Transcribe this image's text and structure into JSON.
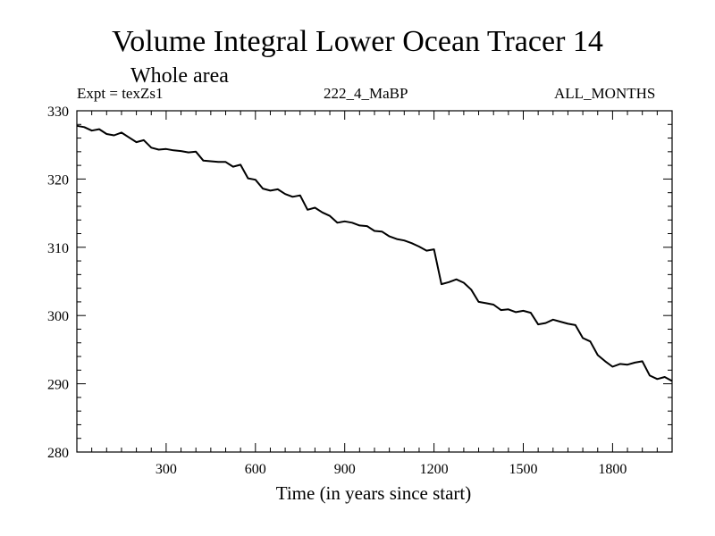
{
  "chart_data": {
    "type": "line",
    "title": "Volume Integral Lower Ocean Tracer 14",
    "subtitle": "Whole area",
    "annotations": {
      "left": "Expt = texZs1",
      "center": "222_4_MaBP",
      "right": "ALL_MONTHS"
    },
    "xlabel": "Time (in years since start)",
    "ylabel": "",
    "xlim": [
      0,
      2000
    ],
    "ylim": [
      280,
      330
    ],
    "x_ticks": [
      300,
      600,
      900,
      1200,
      1500,
      1800
    ],
    "x_tick_labels": [
      "300",
      "600",
      "900",
      "1200",
      "1500",
      "1800"
    ],
    "y_ticks": [
      280,
      290,
      300,
      310,
      320,
      330
    ],
    "y_tick_labels": [
      "280",
      "290",
      "300",
      "310",
      "320",
      "330"
    ],
    "grid": false,
    "series": [
      {
        "name": "tracer14",
        "x": [
          0,
          25,
          50,
          75,
          100,
          125,
          150,
          175,
          200,
          225,
          250,
          275,
          300,
          325,
          350,
          375,
          400,
          425,
          450,
          475,
          500,
          525,
          550,
          575,
          600,
          625,
          650,
          675,
          700,
          725,
          750,
          775,
          800,
          825,
          850,
          875,
          900,
          925,
          950,
          975,
          1000,
          1025,
          1050,
          1075,
          1100,
          1125,
          1150,
          1175,
          1200,
          1225,
          1250,
          1275,
          1300,
          1325,
          1350,
          1375,
          1400,
          1425,
          1450,
          1475,
          1500,
          1525,
          1550,
          1575,
          1600,
          1625,
          1650,
          1675,
          1700,
          1725,
          1750,
          1775,
          1800,
          1825,
          1850,
          1875,
          1900,
          1925,
          1950,
          1975,
          2000
        ],
        "y": [
          327.8,
          327.6,
          327.1,
          327.3,
          326.6,
          326.4,
          326.8,
          326.1,
          325.4,
          325.7,
          324.6,
          324.3,
          324.4,
          324.2,
          324.1,
          323.9,
          324.0,
          322.7,
          322.6,
          322.5,
          322.5,
          321.8,
          322.1,
          320.1,
          319.9,
          318.6,
          318.3,
          318.5,
          317.8,
          317.4,
          317.6,
          315.5,
          315.8,
          315.1,
          314.6,
          313.6,
          313.8,
          313.6,
          313.2,
          313.1,
          312.4,
          312.3,
          311.6,
          311.2,
          311.0,
          310.6,
          310.1,
          309.5,
          309.7,
          304.6,
          304.9,
          305.3,
          304.8,
          303.8,
          302.0,
          301.8,
          301.6,
          300.8,
          300.9,
          300.5,
          300.7,
          300.4,
          298.7,
          298.9,
          299.4,
          299.1,
          298.8,
          298.6,
          296.7,
          296.2,
          294.2,
          293.3,
          292.5,
          292.9,
          292.8,
          293.1,
          293.3,
          291.2,
          290.7,
          291.0,
          290.4
        ]
      }
    ]
  }
}
